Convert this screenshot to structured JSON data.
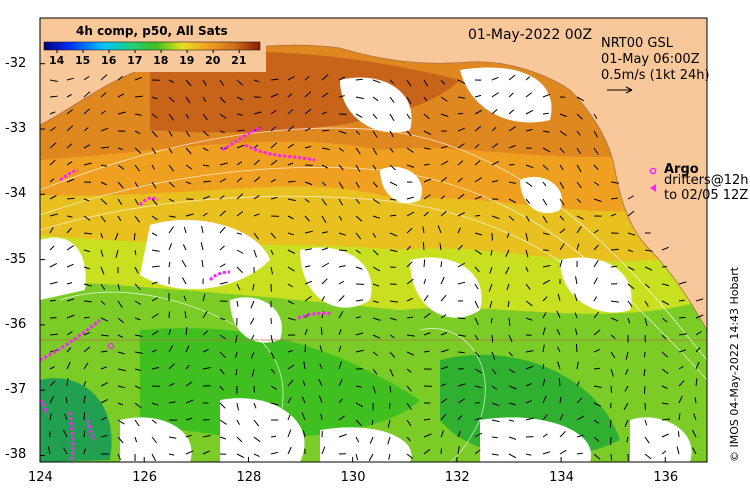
{
  "map": {
    "colorbar": {
      "title": "4h comp, p50, All Sats",
      "ticks": [
        "14",
        "15",
        "16",
        "17",
        "18",
        "19",
        "20",
        "21"
      ],
      "range": [
        13.5,
        21.8
      ]
    },
    "date_label": "01-May-2022 00Z",
    "product": {
      "line1": "NRT00 GSL",
      "line2": "01-May 06:00Z",
      "line3": "0.5m/s (1kt 24h)"
    },
    "legend": {
      "argo_label": "Argo",
      "drifters_line1": "drifters@12h",
      "drifters_line2": "to 02/05 12Z"
    },
    "lat_ticks": [
      "-32",
      "-33",
      "-34",
      "-35",
      "-36",
      "-37",
      "-38"
    ],
    "lon_ticks": [
      "124",
      "126",
      "128",
      "130",
      "132",
      "134",
      "136"
    ],
    "extent": {
      "lon_min": 124,
      "lon_max": 136.8,
      "lat_min": -38.1,
      "lat_max": -31.3
    },
    "copyright": "© IMOS 04-May-2022 14:43 Hobart",
    "colors": {
      "land": "#f8c89a",
      "warm": "#c8641a",
      "mid": "#f0a020",
      "yellow": "#e8e020",
      "green": "#40c020",
      "cloud": "#ffffff",
      "drifter": "#ff20ff"
    }
  }
}
